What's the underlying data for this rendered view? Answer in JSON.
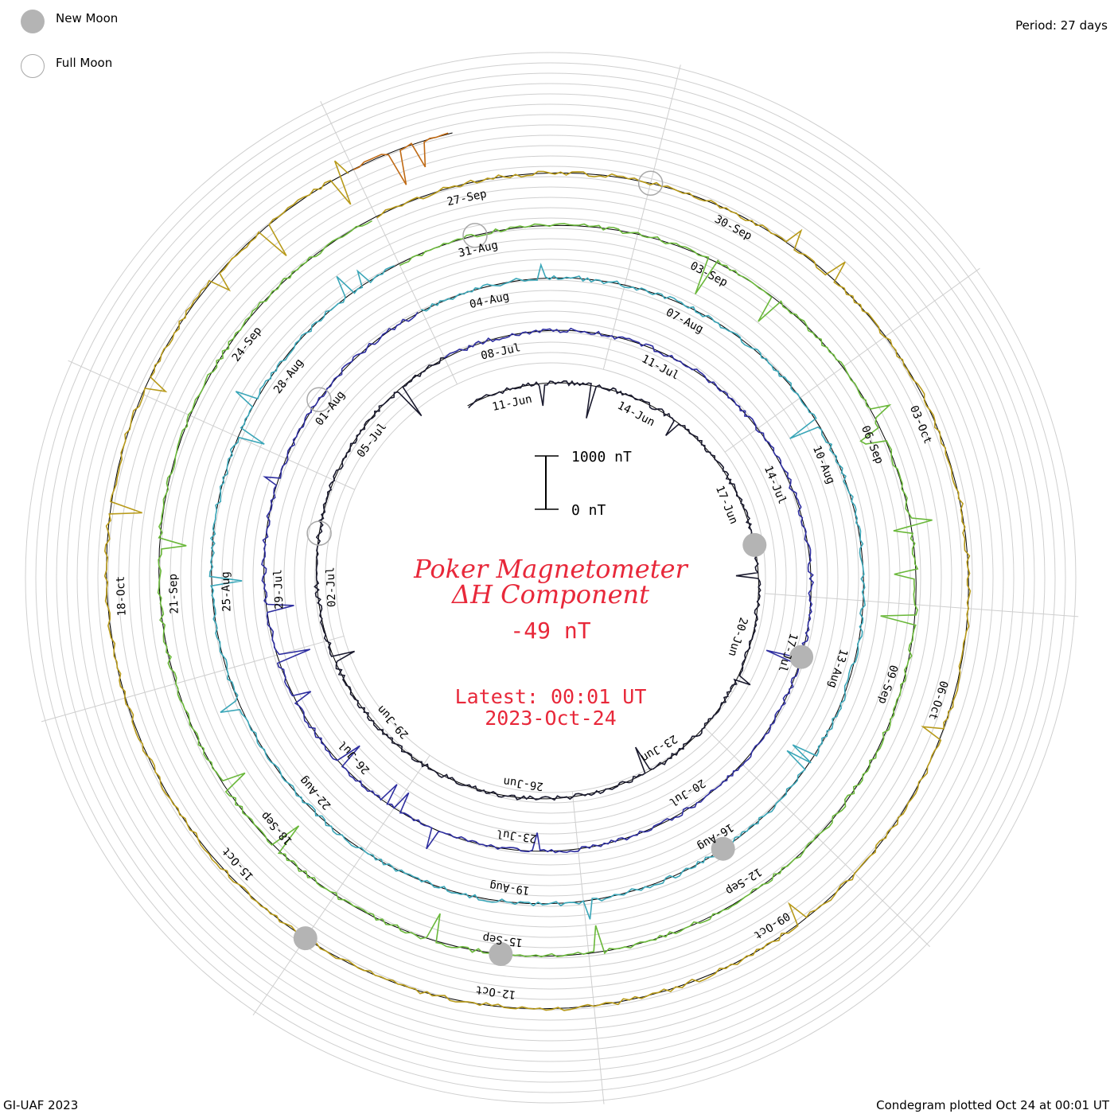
{
  "legend": {
    "new_moon_label": "New Moon",
    "full_moon_label": "Full Moon"
  },
  "period_label": "Period: 27 days",
  "credit": "GI-UAF 2023",
  "plotted_label": "Condegram plotted Oct 24 at 00:01 UT",
  "chart_data": {
    "type": "line",
    "subtype": "spiral condegram (27-day period)",
    "title_line1": "Poker Magnetometer",
    "title_line2": "ΔH Component",
    "current_value": "-49 nT",
    "latest_label": "Latest: 00:01 UT",
    "latest_date": "2023-Oct-24",
    "scale_bar": {
      "top_label": "1000 nT",
      "bottom_label": "0 nT",
      "range_nT": [
        0,
        1000
      ]
    },
    "colors": {
      "ring_1": "#1a1a2e",
      "ring_2": "#2e2ea0",
      "ring_3": "#3aa6b8",
      "ring_4": "#6ab83a",
      "ring_5": "#b89a1a",
      "ring_6": "#c06a14",
      "ring_7": "#c01a14",
      "title": "#e8283a",
      "moon_fill": "#b4b4b4"
    },
    "date_labels": [
      "11-Jun",
      "14-Jun",
      "17-Jun",
      "20-Jun",
      "23-Jun",
      "26-Jun",
      "29-Jun",
      "02-Jul",
      "05-Jul",
      "08-Jul",
      "11-Jul",
      "14-Jul",
      "17-Jul",
      "20-Jul",
      "23-Jul",
      "26-Jul",
      "29-Jul",
      "01-Aug",
      "04-Aug",
      "07-Aug",
      "10-Aug",
      "13-Aug",
      "16-Aug",
      "19-Aug",
      "22-Aug",
      "25-Aug",
      "28-Aug",
      "31-Aug",
      "03-Sep",
      "06-Sep",
      "09-Sep",
      "12-Sep",
      "15-Sep",
      "18-Sep",
      "21-Sep",
      "24-Sep",
      "27-Sep",
      "30-Sep",
      "03-Oct",
      "06-Oct",
      "09-Oct",
      "12-Oct",
      "15-Oct",
      "18-Oct"
    ],
    "new_moons": [
      "2023-06-18",
      "2023-07-17",
      "2023-08-16",
      "2023-09-15",
      "2023-10-14"
    ],
    "full_moons": [
      "2023-07-03",
      "2023-08-01",
      "2023-08-31",
      "2023-09-29"
    ],
    "start_date": "2023-06-10",
    "end_date": "2023-10-24"
  }
}
